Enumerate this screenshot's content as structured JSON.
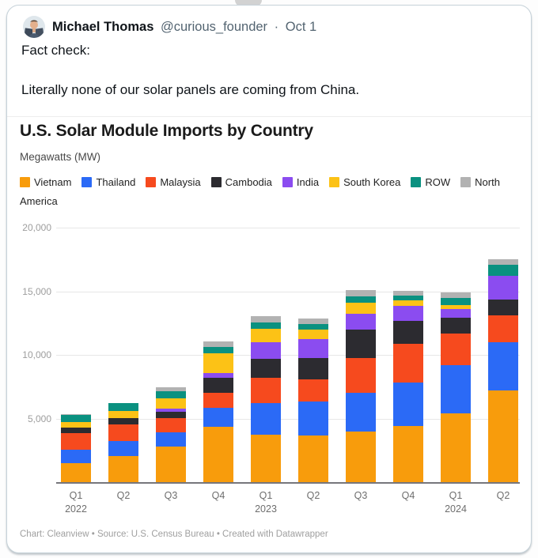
{
  "tweet": {
    "author": "Michael Thomas",
    "handle": "@curious_founder",
    "separator": "·",
    "date": "Oct 1",
    "line1": "Fact check:",
    "line2": "Literally none of our solar panels are coming from China."
  },
  "chart": {
    "title": "U.S. Solar Module Imports by Country",
    "subtitle": "Megawatts (MW)",
    "footer": "Chart: Cleanview • Source: U.S. Census Bureau • Created with Datawrapper",
    "axis_color": "#76767c",
    "gridline_color": "#e7e7e7"
  },
  "chart_data": {
    "type": "bar",
    "stacked": true,
    "title": "U.S. Solar Module Imports by Country",
    "ylabel": "Megawatts (MW)",
    "xlabel": "",
    "ylim": [
      0,
      20000
    ],
    "grid": true,
    "legend_position": "top",
    "yticks": [
      {
        "value": 5000,
        "label": "5,000"
      },
      {
        "value": 10000,
        "label": "10,000"
      },
      {
        "value": 15000,
        "label": "15,000"
      },
      {
        "value": 20000,
        "label": "20,000"
      }
    ],
    "categories": [
      "Q1 2022",
      "Q2 2022",
      "Q3 2022",
      "Q4 2022",
      "Q1 2023",
      "Q2 2023",
      "Q3 2023",
      "Q4 2023",
      "Q1 2024",
      "Q2 2024"
    ],
    "x_tick_lines": [
      [
        "Q1",
        "2022"
      ],
      [
        "Q2"
      ],
      [
        "Q3"
      ],
      [
        "Q4"
      ],
      [
        "Q1",
        "2023"
      ],
      [
        "Q2"
      ],
      [
        "Q3"
      ],
      [
        "Q4"
      ],
      [
        "Q1",
        "2024"
      ],
      [
        "Q2"
      ]
    ],
    "series": [
      {
        "name": "Vietnam",
        "color": "#F89C0C",
        "values": [
          1550,
          2100,
          2870,
          4420,
          3790,
          3710,
          4020,
          4480,
          5460,
          7290
        ]
      },
      {
        "name": "Thailand",
        "color": "#2B6AF6",
        "values": [
          1040,
          1200,
          1130,
          1460,
          2500,
          2710,
          3060,
          3440,
          3810,
          3750
        ]
      },
      {
        "name": "Malaysia",
        "color": "#F64A1E",
        "values": [
          1300,
          1330,
          1100,
          1210,
          2000,
          1750,
          2710,
          3020,
          2500,
          2130
        ]
      },
      {
        "name": "Cambodia",
        "color": "#2C2B30",
        "values": [
          460,
          470,
          520,
          1150,
          1460,
          1670,
          2290,
          1770,
          1190,
          1210
        ]
      },
      {
        "name": "India",
        "color": "#8B4CF0",
        "values": [
          0,
          0,
          250,
          420,
          1290,
          1460,
          1190,
          1190,
          690,
          1920
        ]
      },
      {
        "name": "South Korea",
        "color": "#FCC216",
        "values": [
          450,
          570,
          790,
          1520,
          1080,
          750,
          900,
          420,
          350,
          0
        ]
      },
      {
        "name": "ROW",
        "color": "#0A9180",
        "values": [
          550,
          580,
          520,
          500,
          480,
          420,
          480,
          380,
          540,
          830
        ]
      },
      {
        "name": "North America",
        "color": "#B2B2B2",
        "values": [
          50,
          0,
          310,
          420,
          480,
          460,
          500,
          420,
          420,
          420
        ]
      }
    ],
    "totals": [
      5400,
      6250,
      7490,
      11100,
      13080,
      12930,
      15150,
      15120,
      14960,
      17550
    ]
  }
}
